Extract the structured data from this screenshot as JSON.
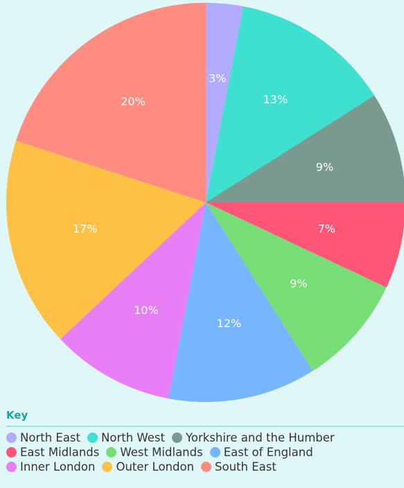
{
  "chart_data": {
    "type": "pie",
    "categories": [
      "North East",
      "North West",
      "Yorkshire and the Humber",
      "East Midlands",
      "West Midlands",
      "East of England",
      "Inner London",
      "Outer London",
      "South East"
    ],
    "values": [
      3,
      13,
      9,
      7,
      9,
      12,
      10,
      17,
      20
    ],
    "value_labels": [
      "3%",
      "13%",
      "9%",
      "7%",
      "9%",
      "12%",
      "10%",
      "17%",
      "20%"
    ],
    "colors": [
      "#b3abff",
      "#40e0d0",
      "#7a9a90",
      "#ff5577",
      "#77dd77",
      "#77b5fe",
      "#e87ef5",
      "#ffc145",
      "#ff8c80"
    ],
    "legend_title": "Key"
  }
}
